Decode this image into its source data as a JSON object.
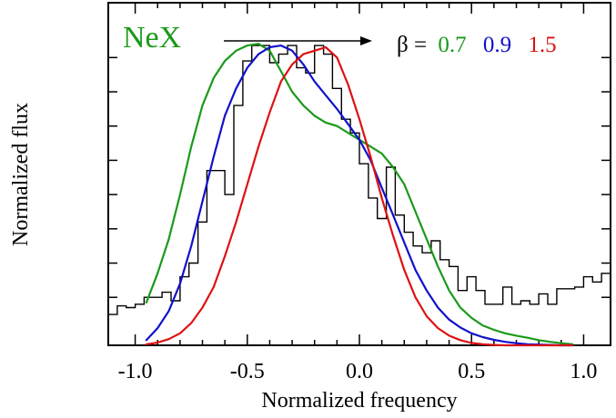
{
  "chart_data": {
    "type": "line",
    "title": "",
    "annotation": "NeX",
    "xlabel": "Normalized frequency",
    "ylabel": "Normalized flux",
    "xlim": [
      -1.12,
      1.12
    ],
    "ylim": [
      0,
      1.0
    ],
    "xticks": [
      -1.0,
      -0.5,
      0.0,
      0.5,
      1.0
    ],
    "xtick_labels": [
      "-1.0",
      "-0.5",
      "0.0",
      "0.5",
      "1.0"
    ],
    "grid": false,
    "legend": {
      "position": "top-right",
      "prefix": "β =",
      "entries": [
        "0.7",
        "0.9",
        "1.5"
      ]
    },
    "colors": {
      "axis": "#000000",
      "annotation": "#1a9a1a",
      "histogram": "#000000"
    },
    "histogram": {
      "name": "",
      "color": "#000000",
      "edges": [
        -1.12,
        -1.08,
        -1.04,
        -1.0,
        -0.96,
        -0.92,
        -0.88,
        -0.84,
        -0.8,
        -0.76,
        -0.72,
        -0.68,
        -0.64,
        -0.6,
        -0.56,
        -0.52,
        -0.48,
        -0.44,
        -0.4,
        -0.36,
        -0.32,
        -0.28,
        -0.24,
        -0.2,
        -0.16,
        -0.12,
        -0.08,
        -0.04,
        0.0,
        0.04,
        0.08,
        0.12,
        0.16,
        0.2,
        0.24,
        0.28,
        0.32,
        0.36,
        0.4,
        0.44,
        0.48,
        0.52,
        0.56,
        0.6,
        0.64,
        0.68,
        0.72,
        0.76,
        0.8,
        0.84,
        0.88,
        0.92,
        0.96,
        1.0,
        1.04,
        1.08,
        1.12
      ],
      "values": [
        0.09,
        0.115,
        0.11,
        0.12,
        0.14,
        0.14,
        0.155,
        0.13,
        0.2,
        0.24,
        0.36,
        0.51,
        0.51,
        0.44,
        0.7,
        0.83,
        0.875,
        0.875,
        0.825,
        0.85,
        0.875,
        0.81,
        0.795,
        0.875,
        0.85,
        0.75,
        0.66,
        0.62,
        0.53,
        0.43,
        0.37,
        0.52,
        0.38,
        0.33,
        0.29,
        0.27,
        0.305,
        0.25,
        0.23,
        0.16,
        0.2,
        0.16,
        0.12,
        0.12,
        0.17,
        0.12,
        0.13,
        0.12,
        0.15,
        0.12,
        0.165,
        0.165,
        0.17,
        0.2,
        0.185,
        0.21
      ]
    },
    "x": [
      -0.95,
      -0.9,
      -0.85,
      -0.8,
      -0.75,
      -0.7,
      -0.65,
      -0.6,
      -0.55,
      -0.5,
      -0.45,
      -0.4,
      -0.35,
      -0.3,
      -0.25,
      -0.2,
      -0.15,
      -0.1,
      -0.05,
      0.0,
      0.05,
      0.1,
      0.15,
      0.2,
      0.25,
      0.3,
      0.35,
      0.4,
      0.45,
      0.5,
      0.55,
      0.6,
      0.65,
      0.7,
      0.75,
      0.8,
      0.85,
      0.9,
      0.95
    ],
    "series": [
      {
        "name": "0.7",
        "color": "#1a9a1a",
        "values": [
          0.125,
          0.21,
          0.31,
          0.44,
          0.58,
          0.7,
          0.78,
          0.83,
          0.86,
          0.875,
          0.88,
          0.86,
          0.8,
          0.74,
          0.7,
          0.67,
          0.65,
          0.64,
          0.62,
          0.6,
          0.58,
          0.56,
          0.52,
          0.47,
          0.39,
          0.31,
          0.23,
          0.16,
          0.11,
          0.08,
          0.058,
          0.045,
          0.035,
          0.028,
          0.022,
          0.015,
          0.01,
          0.006,
          0.003
        ]
      },
      {
        "name": "0.9",
        "color": "#1111cc",
        "values": [
          0.015,
          0.05,
          0.1,
          0.18,
          0.29,
          0.42,
          0.55,
          0.67,
          0.75,
          0.81,
          0.85,
          0.87,
          0.875,
          0.86,
          0.82,
          0.77,
          0.73,
          0.69,
          0.645,
          0.6,
          0.54,
          0.46,
          0.38,
          0.3,
          0.22,
          0.16,
          0.11,
          0.075,
          0.052,
          0.035,
          0.024,
          0.016,
          0.01,
          0.006,
          0.003,
          0.002,
          0.001,
          0.0,
          0.0
        ]
      },
      {
        "name": "1.5",
        "color": "#dd1111",
        "values": [
          0.003,
          0.008,
          0.018,
          0.035,
          0.065,
          0.11,
          0.17,
          0.26,
          0.36,
          0.47,
          0.58,
          0.68,
          0.77,
          0.82,
          0.85,
          0.86,
          0.87,
          0.84,
          0.76,
          0.66,
          0.55,
          0.43,
          0.32,
          0.22,
          0.14,
          0.085,
          0.05,
          0.028,
          0.015,
          0.007,
          0.003,
          0.001,
          0.0,
          0.0,
          0.0,
          0.0,
          0.0,
          0.0,
          0.0
        ]
      }
    ]
  }
}
